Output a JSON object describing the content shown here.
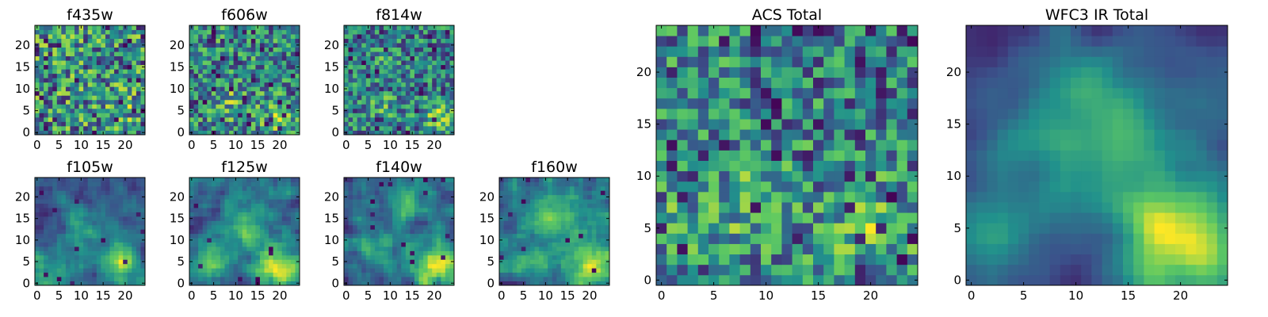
{
  "figure": {
    "colormap": "viridis",
    "colormap_stops": [
      "#440154",
      "#3b528b",
      "#21918c",
      "#5ec962",
      "#fde725"
    ]
  },
  "chart_data": [
    {
      "type": "heatmap",
      "title": "f435w",
      "x_ticks": [
        "0",
        "5",
        "10",
        "15",
        "20"
      ],
      "y_ticks": [
        "0",
        "5",
        "10",
        "15",
        "20"
      ],
      "xlim": [
        -0.5,
        24.5
      ],
      "ylim": [
        -0.5,
        24.5
      ],
      "grid_size": 25,
      "seed": 11,
      "smoothness": 0,
      "blob_strength": 0.3,
      "dark_fraction": 0.06,
      "blobs": [
        {
          "cx": 20,
          "cy": 5,
          "r": 2.5,
          "amp": 0.5
        }
      ]
    },
    {
      "type": "heatmap",
      "title": "f606w",
      "x_ticks": [
        "0",
        "5",
        "10",
        "15",
        "20"
      ],
      "y_ticks": [
        "0",
        "5",
        "10",
        "15",
        "20"
      ],
      "xlim": [
        -0.5,
        24.5
      ],
      "ylim": [
        -0.5,
        24.5
      ],
      "grid_size": 25,
      "seed": 23,
      "smoothness": 0,
      "blob_strength": 0.55,
      "dark_fraction": 0.06,
      "blobs": [
        {
          "cx": 20,
          "cy": 4,
          "r": 2.5,
          "amp": 0.8
        },
        {
          "cx": 9,
          "cy": 7,
          "r": 3,
          "amp": 0.4
        }
      ]
    },
    {
      "type": "heatmap",
      "title": "f814w",
      "x_ticks": [
        "0",
        "5",
        "10",
        "15",
        "20"
      ],
      "y_ticks": [
        "0",
        "5",
        "10",
        "15",
        "20"
      ],
      "xlim": [
        -0.5,
        24.5
      ],
      "ylim": [
        -0.5,
        24.5
      ],
      "grid_size": 25,
      "seed": 37,
      "smoothness": 0,
      "blob_strength": 0.6,
      "dark_fraction": 0.06,
      "blobs": [
        {
          "cx": 21,
          "cy": 4,
          "r": 2.5,
          "amp": 0.9
        },
        {
          "cx": 9,
          "cy": 18,
          "r": 2,
          "amp": 0.4
        },
        {
          "cx": 8,
          "cy": 6,
          "r": 3,
          "amp": 0.4
        }
      ]
    },
    {
      "type": "heatmap",
      "title": "f105w",
      "x_ticks": [
        "0",
        "5",
        "10",
        "15",
        "20"
      ],
      "y_ticks": [
        "0",
        "5",
        "10",
        "15",
        "20"
      ],
      "xlim": [
        -0.5,
        24.5
      ],
      "ylim": [
        -0.5,
        24.5
      ],
      "grid_size": 25,
      "seed": 51,
      "smoothness": 1,
      "blob_strength": 0.75,
      "dark_fraction": 0.02,
      "blobs": [
        {
          "cx": 19,
          "cy": 4,
          "r": 3.5,
          "amp": 1.0
        },
        {
          "cx": 11,
          "cy": 12,
          "r": 4,
          "amp": 0.5
        },
        {
          "cx": 3,
          "cy": 2,
          "r": 4,
          "amp": 0.5
        }
      ]
    },
    {
      "type": "heatmap",
      "title": "f125w",
      "x_ticks": [
        "0",
        "5",
        "10",
        "15",
        "20"
      ],
      "y_ticks": [
        "0",
        "5",
        "10",
        "15",
        "20"
      ],
      "xlim": [
        -0.5,
        24.5
      ],
      "ylim": [
        -0.5,
        24.5
      ],
      "grid_size": 25,
      "seed": 67,
      "smoothness": 1,
      "blob_strength": 0.75,
      "dark_fraction": 0.02,
      "blobs": [
        {
          "cx": 20,
          "cy": 3,
          "r": 3.5,
          "amp": 1.0
        },
        {
          "cx": 12,
          "cy": 13,
          "r": 4,
          "amp": 0.5
        },
        {
          "cx": 3,
          "cy": 4,
          "r": 3,
          "amp": 0.5
        }
      ]
    },
    {
      "type": "heatmap",
      "title": "f140w",
      "x_ticks": [
        "0",
        "5",
        "10",
        "15",
        "20"
      ],
      "y_ticks": [
        "0",
        "5",
        "10",
        "15",
        "20"
      ],
      "xlim": [
        -0.5,
        24.5
      ],
      "ylim": [
        -0.5,
        24.5
      ],
      "grid_size": 25,
      "seed": 79,
      "smoothness": 1,
      "blob_strength": 0.75,
      "dark_fraction": 0.02,
      "blobs": [
        {
          "cx": 20,
          "cy": 4,
          "r": 3.5,
          "amp": 1.0
        },
        {
          "cx": 14,
          "cy": 18,
          "r": 3,
          "amp": 0.5
        },
        {
          "cx": 7,
          "cy": 8,
          "r": 4,
          "amp": 0.4
        }
      ]
    },
    {
      "type": "heatmap",
      "title": "f160w",
      "x_ticks": [
        "0",
        "5",
        "10",
        "15",
        "20"
      ],
      "y_ticks": [
        "0",
        "5",
        "10",
        "15",
        "20"
      ],
      "xlim": [
        -0.5,
        24.5
      ],
      "ylim": [
        -0.5,
        24.5
      ],
      "grid_size": 25,
      "seed": 97,
      "smoothness": 1,
      "blob_strength": 0.75,
      "dark_fraction": 0.02,
      "blobs": [
        {
          "cx": 20,
          "cy": 4,
          "r": 3.5,
          "amp": 1.0
        },
        {
          "cx": 12,
          "cy": 16,
          "r": 4,
          "amp": 0.6
        },
        {
          "cx": 5,
          "cy": 4,
          "r": 3,
          "amp": 0.4
        }
      ]
    },
    {
      "type": "heatmap",
      "title": "ACS Total",
      "x_ticks": [
        "0",
        "5",
        "10",
        "15",
        "20"
      ],
      "y_ticks": [
        "0",
        "5",
        "10",
        "15",
        "20"
      ],
      "xlim": [
        -0.5,
        24.5
      ],
      "ylim": [
        -0.5,
        24.5
      ],
      "grid_size": 25,
      "seed": 131,
      "smoothness": 0,
      "blob_strength": 0.55,
      "dark_fraction": 0.05,
      "blobs": [
        {
          "cx": 20,
          "cy": 5,
          "r": 2.5,
          "amp": 1.0
        },
        {
          "cx": 9,
          "cy": 7,
          "r": 3,
          "amp": 0.55
        },
        {
          "cx": 2,
          "cy": 5,
          "r": 2,
          "amp": 0.4
        }
      ]
    },
    {
      "type": "heatmap",
      "title": "WFC3 IR Total",
      "x_ticks": [
        "0",
        "5",
        "10",
        "15",
        "20"
      ],
      "y_ticks": [
        "0",
        "5",
        "10",
        "15",
        "20"
      ],
      "xlim": [
        -0.5,
        24.5
      ],
      "ylim": [
        -0.5,
        24.5
      ],
      "grid_size": 25,
      "seed": 149,
      "smoothness": 2,
      "blob_strength": 1.0,
      "dark_fraction": 0.0,
      "blobs": [
        {
          "cx": 20,
          "cy": 4,
          "r": 4,
          "amp": 1.0
        },
        {
          "cx": 12,
          "cy": 14,
          "r": 5,
          "amp": 0.55
        },
        {
          "cx": 2,
          "cy": 5,
          "r": 4,
          "amp": 0.4
        }
      ]
    }
  ]
}
